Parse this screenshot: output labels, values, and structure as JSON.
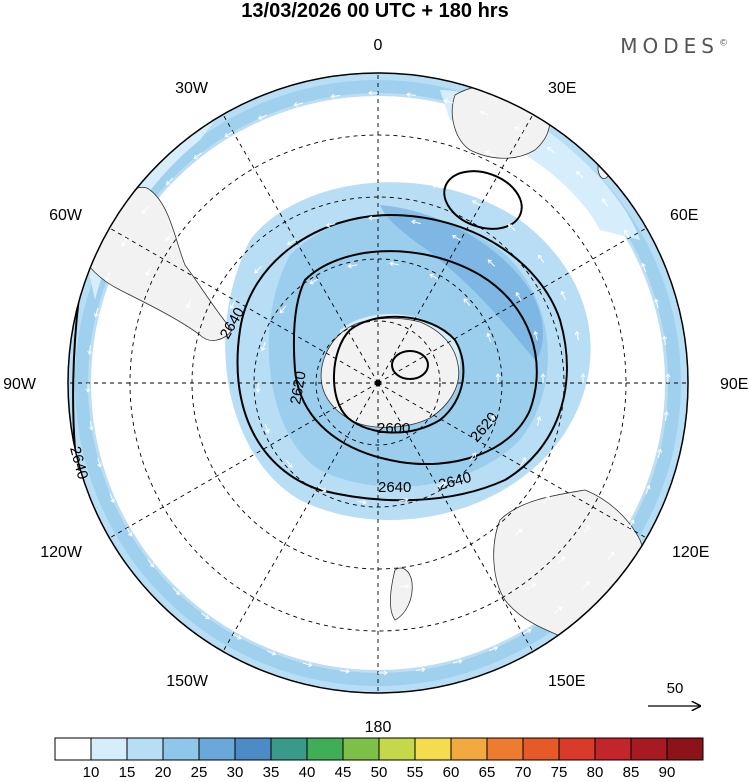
{
  "title": "13/03/2026  00 UTC  + 180 hrs",
  "brand": "MODES",
  "brand_mark": "©",
  "meridian_labels": [
    {
      "text": "0"
    },
    {
      "text": "30E"
    },
    {
      "text": "60E"
    },
    {
      "text": "90E"
    },
    {
      "text": "120E"
    },
    {
      "text": "150E"
    },
    {
      "text": "180"
    },
    {
      "text": "150W"
    },
    {
      "text": "120W"
    },
    {
      "text": "90W"
    },
    {
      "text": "60W"
    },
    {
      "text": "30W"
    }
  ],
  "contour_labels": [
    "2640",
    "2620",
    "2600",
    "2620",
    "2640",
    "2640",
    "2640"
  ],
  "reference_vector": "50",
  "colorbar": {
    "colors": [
      "#ffffff",
      "#d6eefb",
      "#b7def5",
      "#8fc7ea",
      "#6aa8dc",
      "#4b8cc6",
      "#3a9a8a",
      "#3fae57",
      "#7cc047",
      "#c5d84a",
      "#f4dc4e",
      "#f2a93f",
      "#ee7c30",
      "#e65a2a",
      "#d93a2a",
      "#c2252a",
      "#a81a22",
      "#8c1419"
    ],
    "labels": [
      "10",
      "15",
      "20",
      "25",
      "30",
      "35",
      "40",
      "45",
      "50",
      "55",
      "60",
      "65",
      "70",
      "75",
      "80",
      "85",
      "90"
    ]
  },
  "shading": {
    "palette": {
      "light": "#d6eefb",
      "mid": "#b7def5",
      "strong": "#8fc7ea",
      "stronger": "#6aa8dc"
    }
  },
  "land_color": "#f2f2f2"
}
